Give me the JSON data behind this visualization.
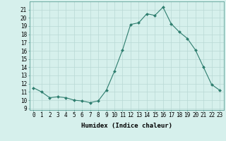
{
  "x": [
    0,
    1,
    2,
    3,
    4,
    5,
    6,
    7,
    8,
    9,
    10,
    11,
    12,
    13,
    14,
    15,
    16,
    17,
    18,
    19,
    20,
    21,
    22,
    23
  ],
  "y": [
    11.5,
    11.0,
    10.3,
    10.4,
    10.3,
    10.0,
    9.9,
    9.7,
    9.9,
    11.2,
    13.5,
    16.1,
    19.2,
    19.4,
    20.5,
    20.3,
    21.3,
    19.3,
    18.3,
    17.5,
    16.1,
    14.0,
    11.9,
    11.2
  ],
  "line_color": "#2e7d6e",
  "marker": "D",
  "marker_size": 2.0,
  "xlabel": "Humidex (Indice chaleur)",
  "ylabel_ticks": [
    9,
    10,
    11,
    12,
    13,
    14,
    15,
    16,
    17,
    18,
    19,
    20,
    21
  ],
  "ylim": [
    8.8,
    22.0
  ],
  "xlim": [
    -0.5,
    23.5
  ],
  "bg_color": "#d6f0ec",
  "grid_color": "#b8d8d4",
  "tick_fontsize": 5.5,
  "xlabel_fontsize": 6.5,
  "linewidth": 0.8
}
